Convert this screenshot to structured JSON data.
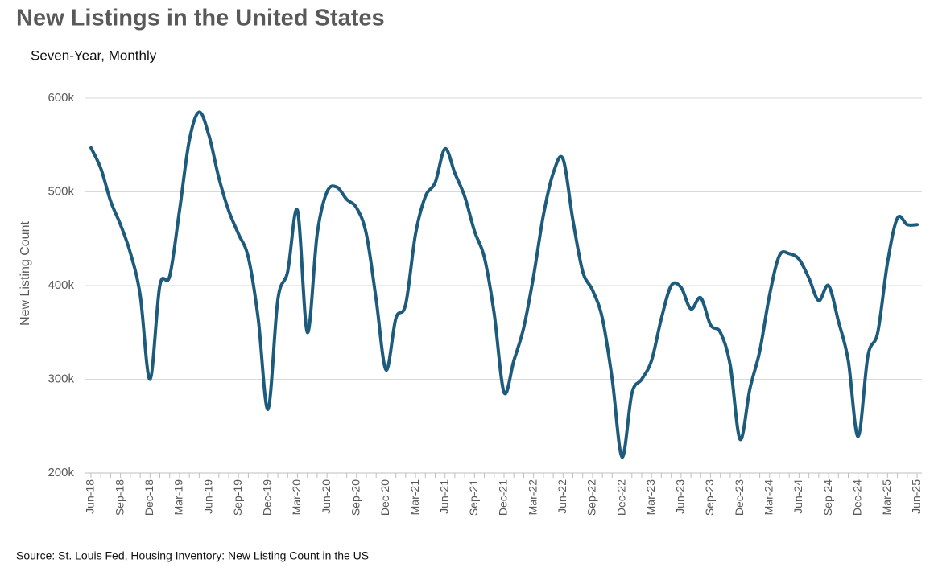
{
  "chart_data": {
    "type": "line",
    "title": "New Listings in the United States",
    "subtitle": "Seven-Year, Monthly",
    "y_label": "New Listing Count",
    "source": "Source: St. Louis Fed, Housing Inventory: New Listing Count in the US",
    "categories": [
      "Jun-18",
      null,
      null,
      "Sep-18",
      null,
      null,
      "Dec-18",
      null,
      null,
      "Mar-19",
      null,
      null,
      "Jun-19",
      null,
      null,
      "Sep-19",
      null,
      null,
      "Dec-19",
      null,
      null,
      "Mar-20",
      null,
      null,
      "Jun-20",
      null,
      null,
      "Sep-20",
      null,
      null,
      "Dec-20",
      null,
      null,
      "Mar-21",
      null,
      null,
      "Jun-21",
      null,
      null,
      "Sep-21",
      null,
      null,
      "Dec-21",
      null,
      null,
      "Mar-22",
      null,
      null,
      "Jun-22",
      null,
      null,
      "Sep-22",
      null,
      null,
      "Dec-22",
      null,
      null,
      "Mar-23",
      null,
      null,
      "Jun-23",
      null,
      null,
      "Sep-23",
      null,
      null,
      "Dec-23",
      null,
      null,
      "Mar-24",
      null,
      null,
      "Jun-24",
      null,
      null,
      "Sep-24",
      null,
      null,
      "Dec-24",
      null,
      null,
      "Mar-25",
      null,
      null,
      "Jun-25"
    ],
    "series": [
      {
        "name": "New Listing Count",
        "color": "#1d5b7c",
        "values": [
          547000,
          525000,
          490000,
          465000,
          435000,
          390000,
          300000,
          400000,
          410000,
          480000,
          555000,
          585000,
          560000,
          515000,
          480000,
          455000,
          430000,
          365000,
          268000,
          385000,
          415000,
          480000,
          350000,
          455000,
          500000,
          505000,
          492000,
          483000,
          455000,
          385000,
          310000,
          365000,
          380000,
          455000,
          495000,
          510000,
          546000,
          520000,
          495000,
          458000,
          430000,
          370000,
          286000,
          320000,
          355000,
          410000,
          475000,
          520000,
          535000,
          470000,
          415000,
          395000,
          365000,
          300000,
          217000,
          285000,
          300000,
          320000,
          365000,
          400000,
          398000,
          375000,
          387000,
          358000,
          350000,
          315000,
          236000,
          290000,
          330000,
          390000,
          432000,
          434000,
          428000,
          408000,
          384000,
          400000,
          362000,
          320000,
          239000,
          325000,
          350000,
          425000,
          472000,
          465000,
          465000
        ]
      }
    ],
    "ylim": [
      200000,
      600000
    ],
    "yticks": [
      {
        "value": 200000,
        "label": "200k"
      },
      {
        "value": 300000,
        "label": "300k"
      },
      {
        "value": 400000,
        "label": "400k"
      },
      {
        "value": 500000,
        "label": "500k"
      },
      {
        "value": 600000,
        "label": "600k"
      }
    ],
    "grid": true
  }
}
